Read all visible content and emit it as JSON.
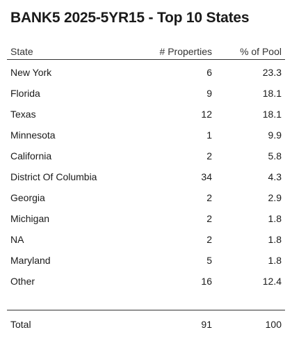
{
  "title": "BANK5 2025-5YR15 - Top 10 States",
  "headers": {
    "state": "State",
    "properties": "# Properties",
    "pct_pool": "% of Pool"
  },
  "rows": [
    {
      "state": "New York",
      "properties": "6",
      "pct_pool": "23.3"
    },
    {
      "state": "Florida",
      "properties": "9",
      "pct_pool": "18.1"
    },
    {
      "state": "Texas",
      "properties": "12",
      "pct_pool": "18.1"
    },
    {
      "state": "Minnesota",
      "properties": "1",
      "pct_pool": "9.9"
    },
    {
      "state": "California",
      "properties": "2",
      "pct_pool": "5.8"
    },
    {
      "state": "District Of Columbia",
      "properties": "34",
      "pct_pool": "4.3"
    },
    {
      "state": "Georgia",
      "properties": "2",
      "pct_pool": "2.9"
    },
    {
      "state": "Michigan",
      "properties": "2",
      "pct_pool": "1.8"
    },
    {
      "state": "NA",
      "properties": "2",
      "pct_pool": "1.8"
    },
    {
      "state": "Maryland",
      "properties": "5",
      "pct_pool": "1.8"
    },
    {
      "state": "Other",
      "properties": "16",
      "pct_pool": "12.4"
    }
  ],
  "total": {
    "label": "Total",
    "properties": "91",
    "pct_pool": "100"
  }
}
